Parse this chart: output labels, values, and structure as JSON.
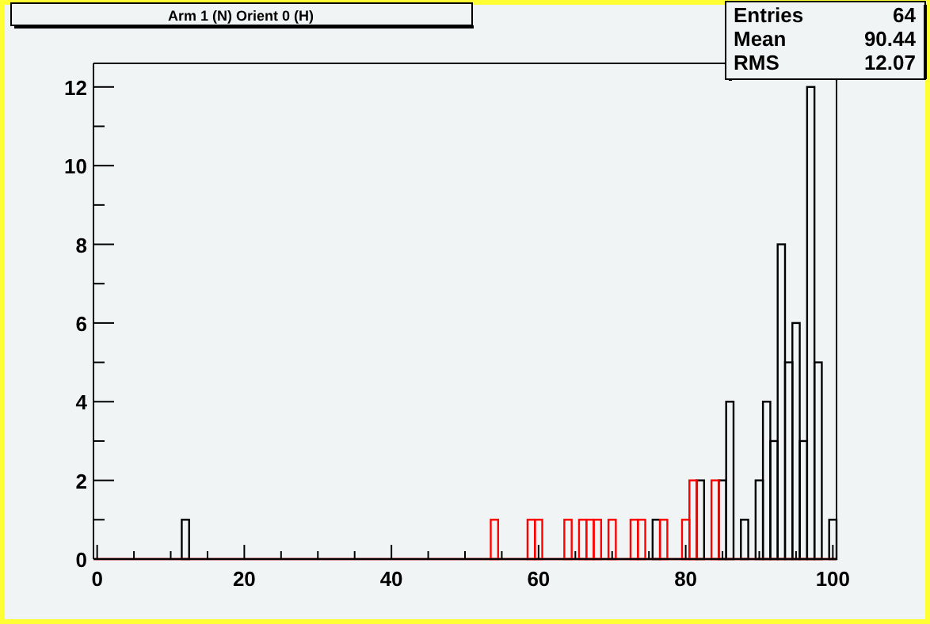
{
  "chart_data": {
    "type": "histogram",
    "title": "Arm 1 (N) Orient 0 (H)",
    "annotations": [
      "Entries 64",
      "Mean 90.44",
      "RMS 12.07"
    ],
    "bins": [
      -0.5,
      0.5,
      1.5,
      2.5,
      3.5,
      4.5,
      5.5,
      6.5,
      7.5,
      8.5,
      9.5,
      10.5,
      11.5,
      12.5,
      13.5,
      14.5,
      15.5,
      16.5,
      17.5,
      18.5,
      19.5,
      20.5,
      21.5,
      22.5,
      23.5,
      24.5,
      25.5,
      26.5,
      27.5,
      28.5,
      29.5,
      30.5,
      31.5,
      32.5,
      33.5,
      34.5,
      35.5,
      36.5,
      37.5,
      38.5,
      39.5,
      40.5,
      41.5,
      42.5,
      43.5,
      44.5,
      45.5,
      46.5,
      47.5,
      48.5,
      49.5,
      50.5,
      51.5,
      52.5,
      53.5,
      54.5,
      55.5,
      56.5,
      57.5,
      58.5,
      59.5,
      60.5,
      61.5,
      62.5,
      63.5,
      64.5,
      65.5,
      66.5,
      67.5,
      68.5,
      69.5,
      70.5,
      71.5,
      72.5,
      73.5,
      74.5,
      75.5,
      76.5,
      77.5,
      78.5,
      79.5,
      80.5,
      81.5,
      82.5,
      83.5,
      84.5,
      85.5,
      86.5,
      87.5,
      88.5,
      89.5,
      90.5,
      91.5,
      92.5,
      93.5,
      94.5,
      95.5,
      96.5,
      97.5,
      98.5,
      99.5,
      100.5
    ],
    "series": [
      {
        "color": "#000000",
        "values": [
          0,
          0,
          0,
          0,
          0,
          0,
          0,
          0,
          0,
          0,
          0,
          0,
          1,
          0,
          0,
          0,
          0,
          0,
          0,
          0,
          0,
          0,
          0,
          0,
          0,
          0,
          0,
          0,
          0,
          0,
          0,
          0,
          0,
          0,
          0,
          0,
          0,
          0,
          0,
          0,
          0,
          0,
          0,
          0,
          0,
          0,
          0,
          0,
          0,
          0,
          0,
          0,
          0,
          0,
          0,
          0,
          0,
          0,
          0,
          0,
          0,
          0,
          0,
          0,
          0,
          0,
          0,
          null,
          0,
          0,
          0,
          0,
          0,
          0,
          null,
          0,
          1,
          0,
          0,
          0,
          0,
          0,
          2,
          0,
          0,
          2,
          4,
          0,
          1,
          0,
          2,
          4,
          3,
          8,
          5,
          6,
          3,
          12,
          5,
          0,
          1
        ]
      },
      {
        "color": "#ff0000",
        "values": [
          0,
          0,
          0,
          0,
          0,
          0,
          0,
          0,
          0,
          0,
          0,
          0,
          0,
          0,
          0,
          0,
          0,
          0,
          0,
          0,
          0,
          0,
          0,
          0,
          0,
          0,
          0,
          0,
          0,
          0,
          0,
          0,
          0,
          0,
          0,
          0,
          0,
          0,
          0,
          0,
          0,
          0,
          0,
          0,
          0,
          0,
          0,
          0,
          0,
          0,
          0,
          0,
          0,
          0,
          1,
          0,
          0,
          0,
          0,
          1,
          1,
          0,
          0,
          0,
          1,
          0,
          1,
          1,
          1,
          0,
          1,
          0,
          0,
          1,
          1,
          0,
          0,
          1,
          0,
          0,
          1,
          2,
          0,
          0,
          2,
          0,
          0,
          0,
          0,
          0,
          0,
          0,
          0,
          0,
          0,
          0,
          0,
          0,
          0,
          0,
          0
        ]
      }
    ],
    "xlim": [
      -0.5,
      100.5
    ],
    "xticks": [
      0,
      {
        "value": 5,
        "label": null
      },
      {
        "value": 10,
        "label": null
      },
      {
        "value": 15,
        "label": null
      },
      20,
      {
        "value": 25,
        "label": null
      },
      {
        "value": 30,
        "label": null
      },
      {
        "value": 35,
        "label": null
      },
      40,
      {
        "value": 45,
        "label": null
      },
      {
        "value": 50,
        "label": null
      },
      {
        "value": 55,
        "label": null
      },
      60,
      {
        "value": 65,
        "label": null
      },
      {
        "value": 70,
        "label": null
      },
      {
        "value": 75,
        "label": null
      },
      80,
      {
        "value": 85,
        "label": null
      },
      {
        "value": 90,
        "label": null
      },
      {
        "value": 95,
        "label": null
      },
      100
    ],
    "ylim": [
      0,
      12.6
    ],
    "yticks": [
      0,
      {
        "value": 1,
        "label": null
      },
      2,
      {
        "value": 3,
        "label": null
      },
      4,
      {
        "value": 5,
        "label": null
      },
      6,
      {
        "value": 7,
        "label": null
      },
      8,
      {
        "value": 9,
        "label": null
      },
      10,
      {
        "value": 11,
        "label": null
      },
      12
    ],
    "grid": false
  }
}
